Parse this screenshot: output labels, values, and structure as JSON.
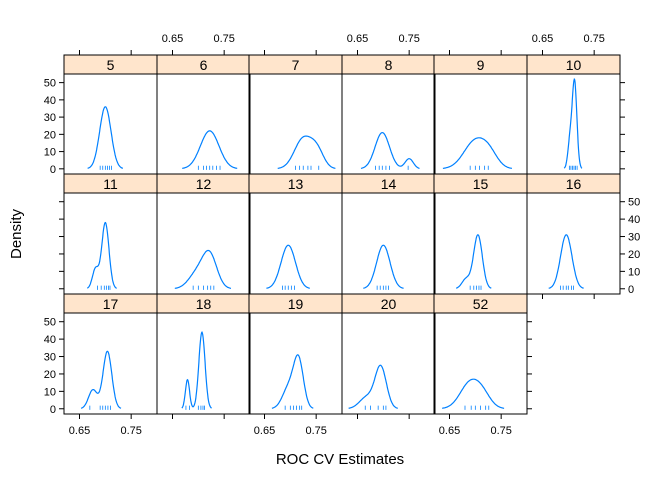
{
  "chart_data": {
    "type": "density-lattice",
    "xlabel": "ROC CV Estimates",
    "ylabel": "Density",
    "xlim": [
      0.62,
      0.8
    ],
    "ylim": [
      -3,
      55
    ],
    "x_ticks": [
      0.65,
      0.75
    ],
    "x_tick_labels": [
      "0.65",
      "0.75"
    ],
    "y_ticks": [
      0,
      10,
      20,
      30,
      40,
      50
    ],
    "y_tick_labels": [
      "0",
      "10",
      "20",
      "30",
      "40",
      "50"
    ],
    "panels": [
      {
        "label": "5",
        "components": [
          [
            0.7,
            0.011,
            1
          ]
        ],
        "peak": 36,
        "rug": [
          0.69,
          0.695,
          0.7,
          0.704,
          0.708,
          0.712
        ]
      },
      {
        "label": "6",
        "components": [
          [
            0.722,
            0.018,
            1
          ]
        ],
        "peak": 22,
        "rug": [
          0.7,
          0.71,
          0.716,
          0.722,
          0.728,
          0.735,
          0.742
        ]
      },
      {
        "label": "7",
        "components": [
          [
            0.725,
            0.017,
            1
          ],
          [
            0.752,
            0.013,
            0.55
          ]
        ],
        "peak": 19,
        "rug": [
          0.71,
          0.718,
          0.725,
          0.734,
          0.74,
          0.755
        ]
      },
      {
        "label": "8",
        "components": [
          [
            0.698,
            0.014,
            1
          ],
          [
            0.75,
            0.008,
            0.28
          ]
        ],
        "peak": 21,
        "rug": [
          0.685,
          0.692,
          0.698,
          0.705,
          0.712,
          0.748
        ]
      },
      {
        "label": "9",
        "components": [
          [
            0.7,
            0.022,
            1
          ],
          [
            0.728,
            0.016,
            0.4
          ]
        ],
        "peak": 18,
        "rug": [
          0.69,
          0.7,
          0.708,
          0.718,
          0.725
        ]
      },
      {
        "label": "10",
        "components": [
          [
            0.712,
            0.0045,
            1
          ],
          [
            0.703,
            0.004,
            0.3
          ]
        ],
        "peak": 52,
        "rug": [
          0.702,
          0.705,
          0.708,
          0.711,
          0.714,
          0.717
        ]
      },
      {
        "label": "11",
        "components": [
          [
            0.7,
            0.007,
            1
          ],
          [
            0.681,
            0.006,
            0.3
          ]
        ],
        "peak": 38,
        "rug": [
          0.685,
          0.692,
          0.698,
          0.702,
          0.706,
          0.709
        ]
      },
      {
        "label": "12",
        "components": [
          [
            0.722,
            0.014,
            1
          ],
          [
            0.697,
            0.016,
            0.45
          ]
        ],
        "peak": 22,
        "rug": [
          0.69,
          0.7,
          0.71,
          0.718,
          0.724,
          0.73
        ]
      },
      {
        "label": "13",
        "components": [
          [
            0.696,
            0.014,
            1
          ]
        ],
        "peak": 25,
        "rug": [
          0.685,
          0.69,
          0.696,
          0.702,
          0.708
        ]
      },
      {
        "label": "14",
        "components": [
          [
            0.7,
            0.013,
            1
          ]
        ],
        "peak": 25,
        "rug": [
          0.688,
          0.694,
          0.7,
          0.705,
          0.71
        ]
      },
      {
        "label": "15",
        "components": [
          [
            0.705,
            0.0085,
            1
          ],
          [
            0.682,
            0.008,
            0.18
          ]
        ],
        "peak": 31,
        "rug": [
          0.69,
          0.697,
          0.702,
          0.707,
          0.711
        ]
      },
      {
        "label": "16",
        "components": [
          [
            0.696,
            0.011,
            1
          ]
        ],
        "peak": 31,
        "rug": [
          0.685,
          0.69,
          0.696,
          0.7,
          0.706,
          0.71
        ]
      },
      {
        "label": "17",
        "components": [
          [
            0.704,
            0.0085,
            1
          ],
          [
            0.676,
            0.0085,
            0.33
          ]
        ],
        "peak": 33,
        "rug": [
          0.67,
          0.69,
          0.695,
          0.7,
          0.705,
          0.71
        ]
      },
      {
        "label": "18",
        "components": [
          [
            0.707,
            0.006,
            1
          ],
          [
            0.679,
            0.004,
            0.38
          ]
        ],
        "peak": 44,
        "rug": [
          0.676,
          0.683,
          0.7,
          0.705,
          0.709,
          0.712
        ]
      },
      {
        "label": "19",
        "components": [
          [
            0.716,
            0.0095,
            1
          ],
          [
            0.697,
            0.012,
            0.45
          ]
        ],
        "peak": 31,
        "rug": [
          0.69,
          0.7,
          0.706,
          0.712,
          0.718,
          0.722
        ]
      },
      {
        "label": "20",
        "components": [
          [
            0.695,
            0.011,
            1
          ],
          [
            0.668,
            0.014,
            0.28
          ]
        ],
        "peak": 25,
        "rug": [
          0.665,
          0.675,
          0.69,
          0.7,
          0.705
        ]
      },
      {
        "label": "52",
        "components": [
          [
            0.689,
            0.019,
            1
          ],
          [
            0.714,
            0.016,
            0.5
          ]
        ],
        "peak": 17,
        "rug": [
          0.68,
          0.692,
          0.7,
          0.71,
          0.72,
          0.726
        ]
      }
    ]
  }
}
